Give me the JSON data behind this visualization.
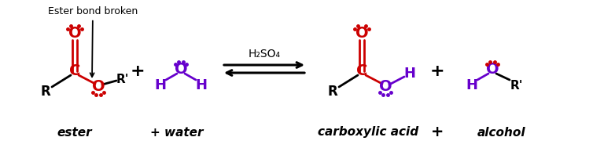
{
  "background_color": "#ffffff",
  "fig_width": 7.68,
  "fig_height": 1.89,
  "dpi": 100,
  "annotation_label": "Ester bond broken",
  "catalyst": "H₂SO₄",
  "label_ester": "ester",
  "label_water": "+ water",
  "label_carboxylic": "carboxylic acid",
  "label_plus2": "+",
  "label_alcohol": "alcohol",
  "purple": "#6600cc",
  "red": "#cc0000"
}
